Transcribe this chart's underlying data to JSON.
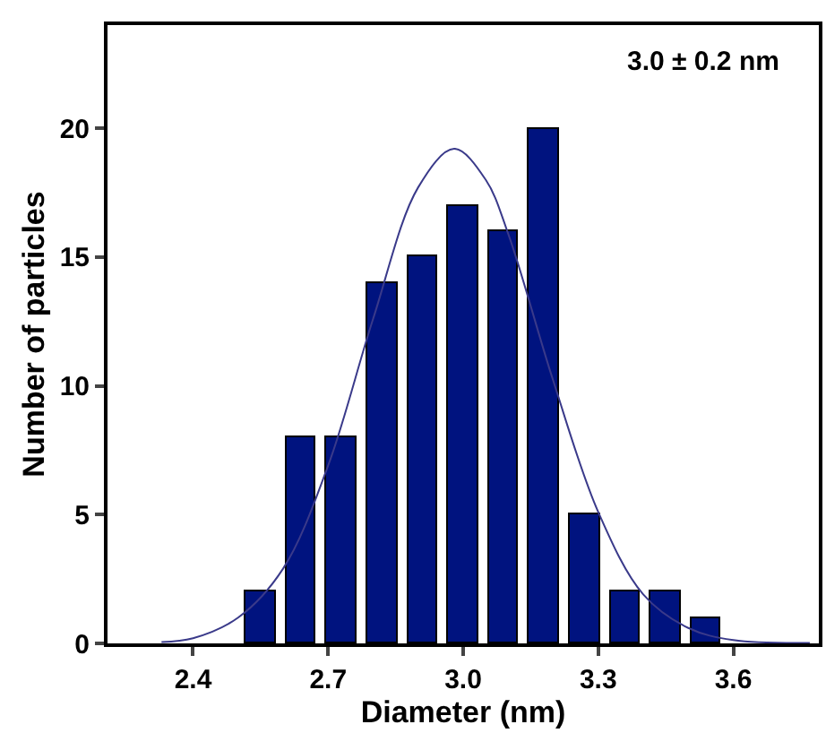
{
  "chart_data": {
    "type": "bar",
    "xlabel": "Diameter (nm)",
    "ylabel": "Number of particles",
    "annotations": [
      "3.0 ± 0.2 nm"
    ],
    "x": [
      2.55,
      2.64,
      2.73,
      2.82,
      2.91,
      3.0,
      3.09,
      3.18,
      3.27,
      3.36,
      3.45,
      3.54
    ],
    "series": [
      {
        "color": "#00137f",
        "values": [
          2,
          8,
          8,
          14,
          15,
          17,
          16,
          20,
          5,
          2,
          2,
          1
        ]
      },
      {
        "type": "line",
        "color": "#3a3a8a",
        "x": [
          2.33,
          2.4,
          2.5,
          2.6,
          2.7,
          2.8,
          2.9,
          2.98,
          3.05,
          3.1,
          3.2,
          3.3,
          3.4,
          3.5,
          3.6,
          3.77
        ],
        "values": [
          0.05,
          0.2,
          1.0,
          2.9,
          6.9,
          12.6,
          17.7,
          19.2,
          18.0,
          15.9,
          10.2,
          5.1,
          1.9,
          0.6,
          0.13,
          0.02
        ]
      }
    ],
    "xlim": [
      2.21,
      3.79
    ],
    "xticks": [
      2.4,
      2.7,
      {
        "value": 3,
        "label": "3.0"
      },
      3.3,
      3.6
    ],
    "ylim": [
      0,
      24
    ],
    "yticks": [
      0,
      5,
      10,
      15,
      20
    ],
    "marker": "none"
  }
}
